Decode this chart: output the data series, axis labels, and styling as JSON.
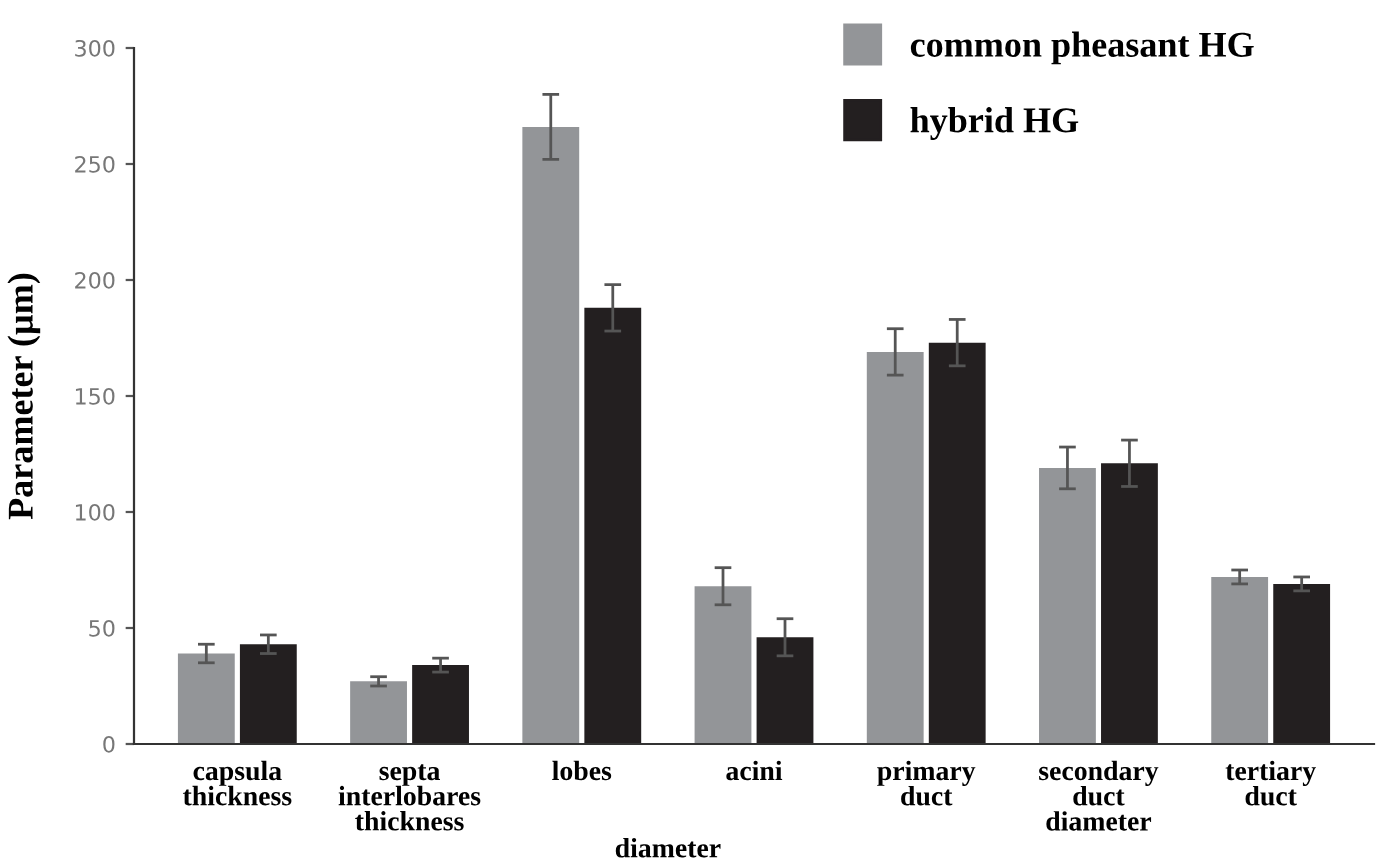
{
  "chart_data": {
    "type": "bar",
    "ylabel": "Parameter (µm)",
    "categories": [
      "capsula\nthickness",
      "septa\ninterlobares\nthickness",
      "lobes",
      "acini",
      "primary\nduct",
      "secondary\nduct\ndiameter",
      "tertiary\nduct"
    ],
    "series": [
      {
        "name": "common pheasant HG",
        "color": "#939598",
        "values": [
          39,
          27,
          266,
          68,
          169,
          119,
          72
        ],
        "errors": [
          4,
          2,
          14,
          8,
          10,
          9,
          3
        ]
      },
      {
        "name": "hybrid HG",
        "color": "#231f20",
        "values": [
          43,
          34,
          188,
          46,
          173,
          121,
          69
        ],
        "errors": [
          4,
          3,
          10,
          8,
          10,
          10,
          3
        ]
      }
    ],
    "annotations": [
      "diameter"
    ],
    "ylim": [
      0,
      300
    ],
    "yticks": [
      0,
      50,
      100,
      150,
      200,
      250,
      300
    ],
    "grid": false,
    "legend": "top right"
  }
}
